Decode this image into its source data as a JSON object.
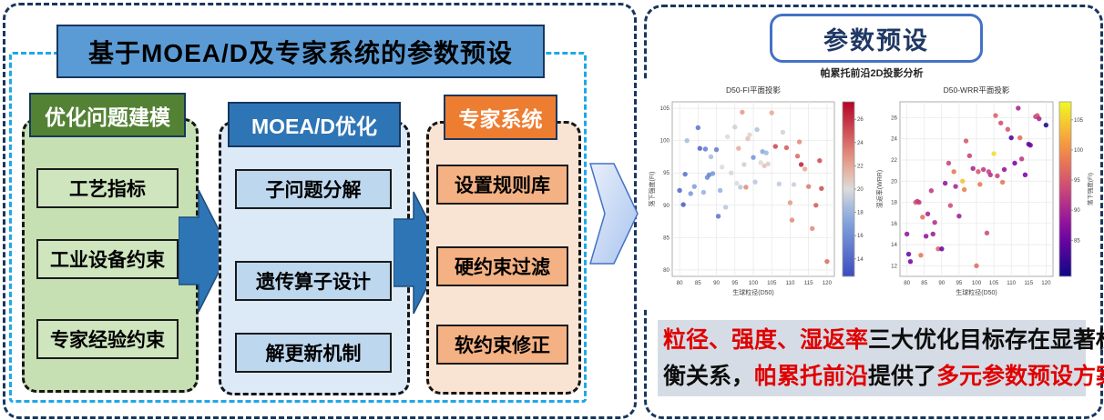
{
  "left_panel": {
    "title": "基于MOEA/D及专家系统的参数预设",
    "columns": [
      {
        "header": "优化问题建模",
        "items": [
          "工艺指标",
          "工业设备约束",
          "专家经验约束"
        ]
      },
      {
        "header": "MOEA/D优化",
        "items": [
          "子问题分解",
          "遗传算子设计",
          "解更新机制"
        ]
      },
      {
        "header": "专家系统",
        "items": [
          "设置规则库",
          "硬约束过滤",
          "软约束修正"
        ]
      }
    ]
  },
  "right_panel": {
    "title": "参数预设",
    "chart_suptitle": "帕累托前沿2D投影分析",
    "conclusion_lines": [
      [
        {
          "text": "粒径、强度、湿返率",
          "red": true
        },
        {
          "text": "三大优化目标存在显著权",
          "red": false
        }
      ],
      [
        {
          "text": "衡关系，",
          "red": false
        },
        {
          "text": "帕累托前沿",
          "red": true
        },
        {
          "text": "提供了",
          "red": false
        },
        {
          "text": "多元参数预设方案。",
          "red": true
        }
      ]
    ]
  },
  "colors": {
    "navy_dash": "#17375E",
    "cyan_dash": "#1FA7E8",
    "title_fill": "#5B9BD5",
    "green_header": "#548235",
    "blue_header": "#2E75B6",
    "orange_header": "#ED7D31",
    "conclusion_bg": "#D6DCE5",
    "conclusion_red": "#E00000"
  },
  "chart_data": [
    {
      "type": "scatter",
      "title": "D50-FI平面投影",
      "xlabel": "生球粒径(D50)",
      "ylabel": "落下强度(FI)",
      "colorbar_label": "湿返率(WRR)",
      "colormap": "coolwarm",
      "xlim": [
        78,
        122
      ],
      "ylim": [
        79,
        106
      ],
      "clim": [
        12.5,
        27.5
      ],
      "xticks": [
        80,
        85,
        90,
        95,
        100,
        105,
        110,
        115,
        120
      ],
      "yticks": [
        80,
        85,
        90,
        95,
        100,
        105
      ],
      "cticks": [
        14,
        16,
        18,
        20,
        22,
        24,
        26
      ],
      "grid": true,
      "points": [
        [
          80,
          92.3,
          14
        ],
        [
          81,
          90.1,
          13.5
        ],
        [
          81.5,
          94.8,
          14.5
        ],
        [
          82,
          100,
          18.5
        ],
        [
          83,
          91.8,
          16.5
        ],
        [
          84,
          92.9,
          17
        ],
        [
          85,
          102,
          14.8
        ],
        [
          85.5,
          98.8,
          14
        ],
        [
          86.5,
          92,
          18
        ],
        [
          87,
          98.7,
          15.2
        ],
        [
          87.5,
          94.3,
          16
        ],
        [
          88,
          94.7,
          15.5
        ],
        [
          88.5,
          97.5,
          18.5
        ],
        [
          89,
          94.9,
          16.5
        ],
        [
          90,
          98.6,
          15
        ],
        [
          90.5,
          88.3,
          14.7
        ],
        [
          91,
          92.3,
          18
        ],
        [
          91.5,
          95.9,
          20
        ],
        [
          92.5,
          89.7,
          19
        ],
        [
          93,
          100.6,
          20
        ],
        [
          94,
          95,
          19.8
        ],
        [
          95,
          102.1,
          19.5
        ],
        [
          95.5,
          93.4,
          20
        ],
        [
          96,
          98.8,
          21.8
        ],
        [
          96.5,
          92.8,
          19
        ],
        [
          97,
          104.4,
          22.5
        ],
        [
          97.5,
          96.3,
          19.5
        ],
        [
          98,
          92.8,
          23
        ],
        [
          98.5,
          100.3,
          21
        ],
        [
          99,
          100.9,
          20.3
        ],
        [
          100,
          97.4,
          16.5
        ],
        [
          100.5,
          93.6,
          19
        ],
        [
          101,
          101.7,
          18.8
        ],
        [
          102,
          96.6,
          20
        ],
        [
          102.5,
          98.3,
          17.5
        ],
        [
          103,
          96.1,
          21
        ],
        [
          103.5,
          98.1,
          18.2
        ],
        [
          104,
          96.4,
          20.6
        ],
        [
          105,
          104.3,
          22
        ],
        [
          106,
          99.1,
          25.2
        ],
        [
          107,
          93.3,
          19.2
        ],
        [
          108,
          101.3,
          19.6
        ],
        [
          109,
          98.9,
          24.5
        ],
        [
          110,
          90.4,
          22.5
        ],
        [
          110.5,
          87.7,
          23
        ],
        [
          111,
          93.2,
          19.4
        ],
        [
          112,
          97.6,
          24
        ],
        [
          112.5,
          99.8,
          23
        ],
        [
          113,
          96.3,
          26.5
        ],
        [
          114,
          95.6,
          22
        ],
        [
          115,
          92.9,
          23.5
        ],
        [
          116,
          86.4,
          23
        ],
        [
          117,
          90,
          24.5
        ],
        [
          118,
          96.9,
          25
        ],
        [
          118.5,
          92.6,
          25
        ],
        [
          120,
          81.3,
          24
        ]
      ]
    },
    {
      "type": "scatter",
      "title": "D50-WRR平面投影",
      "xlabel": "生球粒径(D50)",
      "ylabel": "湿返率(WRR)",
      "colorbar_label": "落下强度(FI)",
      "colormap": "plasma",
      "xlim": [
        78,
        122
      ],
      "ylim": [
        11,
        27.5
      ],
      "clim": [
        79,
        108
      ],
      "xticks": [
        80,
        85,
        90,
        95,
        100,
        105,
        110,
        115,
        120
      ],
      "yticks": [
        12,
        14,
        16,
        18,
        20,
        22,
        24,
        26
      ],
      "cticks": [
        85,
        90,
        95,
        100,
        105
      ],
      "grid": true,
      "points": [
        [
          80,
          15,
          88
        ],
        [
          80.5,
          13.1,
          85
        ],
        [
          81,
          12.4,
          86
        ],
        [
          82.5,
          18,
          95
        ],
        [
          83,
          18.1,
          93
        ],
        [
          83.5,
          18,
          92
        ],
        [
          84,
          13,
          98
        ],
        [
          84.5,
          16.6,
          97
        ],
        [
          85.5,
          14.8,
          88
        ],
        [
          86,
          16.9,
          90
        ],
        [
          87,
          19.1,
          92
        ],
        [
          87.5,
          15,
          89
        ],
        [
          88,
          16.1,
          91
        ],
        [
          89,
          13.6,
          96
        ],
        [
          90,
          13.6,
          85
        ],
        [
          91,
          19.8,
          88
        ],
        [
          92,
          21.7,
          93
        ],
        [
          92.5,
          17.7,
          94
        ],
        [
          93.5,
          20.9,
          98
        ],
        [
          94,
          19.5,
          90
        ],
        [
          95,
          16.7,
          89
        ],
        [
          96,
          20,
          104
        ],
        [
          96.5,
          19.2,
          99
        ],
        [
          97,
          23.8,
          95
        ],
        [
          98,
          22.4,
          93
        ],
        [
          99,
          21.2,
          90
        ],
        [
          100,
          12,
          97
        ],
        [
          100.5,
          20.9,
          95
        ],
        [
          101,
          19.7,
          98
        ],
        [
          102,
          21.1,
          92
        ],
        [
          103,
          15.1,
          94
        ],
        [
          103.5,
          20.9,
          93
        ],
        [
          104,
          20.6,
          91
        ],
        [
          105,
          22.6,
          106
        ],
        [
          105.5,
          26.2,
          96
        ],
        [
          106,
          20.5,
          93
        ],
        [
          107,
          25.5,
          94
        ],
        [
          107.5,
          19.9,
          98
        ],
        [
          108,
          21.1,
          88
        ],
        [
          109,
          24.9,
          95
        ],
        [
          110,
          24.1,
          83
        ],
        [
          111,
          21.7,
          86
        ],
        [
          112,
          26.9,
          90
        ],
        [
          112.5,
          24.1,
          97
        ],
        [
          113,
          22.1,
          92
        ],
        [
          114,
          20.6,
          86
        ],
        [
          115,
          23.5,
          84
        ],
        [
          115.5,
          23.4,
          85
        ],
        [
          117,
          26.1,
          93
        ],
        [
          117.5,
          26.2,
          95
        ],
        [
          118,
          25.9,
          90
        ],
        [
          120,
          25.3,
          80
        ]
      ]
    }
  ]
}
